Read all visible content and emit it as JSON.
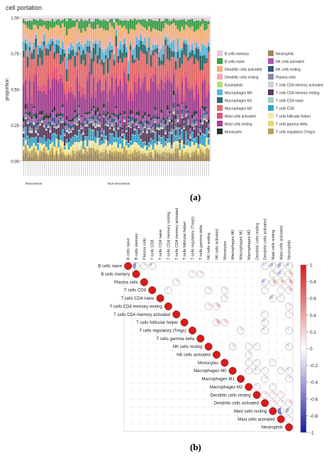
{
  "panel_labels": {
    "a": "(a)",
    "b": "(b)"
  },
  "chart_data": [
    {
      "type": "bar",
      "stacked": true,
      "title": "cell portation",
      "ylabel": "proportion",
      "xlabel": "",
      "ylim": [
        0,
        1
      ],
      "yticks": [
        "0.00",
        "0.25",
        "0.50",
        "0.75",
        "1.00"
      ],
      "group_labels": [
        "Recurrence",
        "Non-recurrence"
      ],
      "n_samples": 91,
      "grid": true,
      "legend_position": "right",
      "series": [
        {
          "name": "Neutrophils",
          "color": "#a08a5c",
          "mean": 0.035
        },
        {
          "name": "T cells regulatory (Tregs)",
          "color": "#b8a25e",
          "mean": 0.03
        },
        {
          "name": "T cells gamma delta",
          "color": "#e8d878",
          "mean": 0.02
        },
        {
          "name": "T cells follicular helper",
          "color": "#f3eaa8",
          "mean": 0.03
        },
        {
          "name": "T cells CD8",
          "color": "#3aa3c9",
          "mean": 0.05
        },
        {
          "name": "T cells CD4 naive",
          "color": "#9fd3b8",
          "mean": 0.005
        },
        {
          "name": "T cells CD4 memory resting",
          "color": "#5a3b5e",
          "mean": 0.06
        },
        {
          "name": "T cells CD4 memory activated",
          "color": "#c9d8c8",
          "mean": 0.01
        },
        {
          "name": "Plasma cells",
          "color": "#8e86a8",
          "mean": 0.02
        },
        {
          "name": "NK cells resting",
          "color": "#2f5a7a",
          "mean": 0.02
        },
        {
          "name": "NK cells activated",
          "color": "#a85ab0",
          "mean": 0.03
        },
        {
          "name": "Monocytes",
          "color": "#1f3a2a",
          "mean": 0.02
        },
        {
          "name": "Mast cells resting",
          "color": "#a23f8e",
          "mean": 0.17
        },
        {
          "name": "Mast cells activated",
          "color": "#e2507a",
          "mean": 0.04
        },
        {
          "name": "Macrophages M2",
          "color": "#e36a6a",
          "mean": 0.16
        },
        {
          "name": "Macrophages M1",
          "color": "#2c6a6a",
          "mean": 0.06
        },
        {
          "name": "Macrophages M0",
          "color": "#5bb6e0",
          "mean": 0.05
        },
        {
          "name": "Eosinophils",
          "color": "#b3df6f",
          "mean": 0.005
        },
        {
          "name": "Dendritic cells resting",
          "color": "#f7a9b4",
          "mean": 0.03
        },
        {
          "name": "Dendritic cells activated",
          "color": "#f2b27a",
          "mean": 0.08
        },
        {
          "name": "B cells naive",
          "color": "#3aa04a",
          "mean": 0.05
        },
        {
          "name": "B cells memory",
          "color": "#e8c8dc",
          "mean": 0.015
        }
      ],
      "legend": [
        [
          "B cells memory",
          "#e8c8dc"
        ],
        [
          "Neutrophils",
          "#a08a5c"
        ],
        [
          "B cells naive",
          "#3aa04a"
        ],
        [
          "NK cells activated",
          "#a85ab0"
        ],
        [
          "Dendritic cells activated",
          "#f2b27a"
        ],
        [
          "NK cells resting",
          "#2f5a7a"
        ],
        [
          "Dendritic cells resting",
          "#f7a9b4"
        ],
        [
          "Plasma cells",
          "#8e86a8"
        ],
        [
          "Eosinophils",
          "#b3df6f"
        ],
        [
          "T cells CD4 memory activated",
          "#c9d8c8"
        ],
        [
          "Macrophages M0",
          "#5bb6e0"
        ],
        [
          "T cells CD4 memory resting",
          "#5a3b5e"
        ],
        [
          "Macrophages M1",
          "#2c6a6a"
        ],
        [
          "T cells CD4 naive",
          "#9fd3b8"
        ],
        [
          "Macrophages M2",
          "#e36a6a"
        ],
        [
          "T cells CD8",
          "#3aa3c9"
        ],
        [
          "Mast cells activated",
          "#e2507a"
        ],
        [
          "T cells follicular helper",
          "#f3eaa8"
        ],
        [
          "Mast cells resting",
          "#a23f8e"
        ],
        [
          "T cells gamma delta",
          "#e8d878"
        ],
        [
          "Monocytes",
          "#1f3a2a"
        ],
        [
          "T cells regulatory (Tregs)",
          "#b8a25e"
        ]
      ]
    },
    {
      "type": "heatmap",
      "subtype": "correlation (upper triangle, pie glyphs)",
      "labels": [
        "B cells naive",
        "B cells memory",
        "Plasma cells",
        "T cells CD8",
        "T cells CD4 naive",
        "T cells CD4 memory resting",
        "T cells CD4 memory activated",
        "T cells follicular helper",
        "T cells regulatory (Tregs)",
        "T cells gamma delta",
        "NK cells resting",
        "NK cells activated",
        "Monocytes",
        "Macrophages M0",
        "Macrophages M1",
        "Macrophages M2",
        "Dendritic cells resting",
        "Dendritic cells activated",
        "Mast cells resting",
        "Mast cells activated",
        "Neutrophils"
      ],
      "colorbar_ticks": [
        "1",
        "0.8",
        "0.6",
        "0.4",
        "0.2",
        "0",
        "-0.2",
        "-0.4",
        "-0.6",
        "-0.8",
        "-1"
      ],
      "colorbar_range": [
        -1,
        1
      ],
      "colors": {
        "negative": "#1a1aa8",
        "zero": "#ffffff",
        "positive": "#d81b1b"
      },
      "cells": [
        [
          0,
          1,
          -0.45
        ],
        [
          0,
          2,
          0.2
        ],
        [
          0,
          3,
          -0.25
        ],
        [
          0,
          17,
          -0.2
        ],
        [
          0,
          18,
          -0.3
        ],
        [
          0,
          19,
          -0.35
        ],
        [
          0,
          20,
          -0.25
        ],
        [
          1,
          8,
          0.15
        ],
        [
          1,
          9,
          0.2
        ],
        [
          1,
          18,
          0.2
        ],
        [
          1,
          19,
          -0.3
        ],
        [
          1,
          20,
          0.3
        ],
        [
          2,
          6,
          0.2
        ],
        [
          2,
          17,
          -0.3
        ],
        [
          2,
          18,
          0.35
        ],
        [
          2,
          19,
          0.3
        ],
        [
          2,
          20,
          0.35
        ],
        [
          3,
          5,
          -0.15
        ],
        [
          3,
          10,
          0.2
        ],
        [
          3,
          12,
          0.2
        ],
        [
          3,
          17,
          0.15
        ],
        [
          3,
          19,
          0.15
        ],
        [
          3,
          20,
          0.3
        ],
        [
          4,
          12,
          0.2
        ],
        [
          4,
          18,
          -0.3
        ],
        [
          4,
          19,
          -0.15
        ],
        [
          5,
          10,
          0.2
        ],
        [
          5,
          11,
          0.3
        ],
        [
          5,
          20,
          0.2
        ],
        [
          6,
          17,
          -0.15
        ],
        [
          6,
          20,
          0.15
        ],
        [
          7,
          11,
          0.35
        ],
        [
          7,
          12,
          0.25
        ],
        [
          7,
          17,
          -0.2
        ],
        [
          8,
          14,
          0.2
        ],
        [
          8,
          17,
          -0.2
        ],
        [
          8,
          20,
          -0.15
        ],
        [
          10,
          13,
          0.2
        ],
        [
          10,
          15,
          0.15
        ],
        [
          10,
          16,
          -0.15
        ],
        [
          10,
          20,
          -0.2
        ],
        [
          11,
          15,
          0.2
        ],
        [
          12,
          15,
          -0.1
        ],
        [
          12,
          16,
          -0.15
        ],
        [
          12,
          18,
          0.15
        ],
        [
          13,
          15,
          -0.15
        ],
        [
          13,
          16,
          -0.2
        ],
        [
          13,
          17,
          -0.15
        ],
        [
          13,
          19,
          0.2
        ],
        [
          13,
          20,
          -0.2
        ],
        [
          14,
          17,
          0.2
        ],
        [
          14,
          20,
          0.2
        ],
        [
          15,
          16,
          -0.15
        ],
        [
          15,
          18,
          0.15
        ],
        [
          16,
          17,
          0.2
        ],
        [
          16,
          18,
          0.2
        ],
        [
          16,
          19,
          0.15
        ],
        [
          17,
          18,
          0.2
        ],
        [
          17,
          19,
          0.2
        ],
        [
          17,
          20,
          0.25
        ],
        [
          18,
          19,
          -0.55
        ],
        [
          18,
          20,
          -0.35
        ],
        [
          19,
          20,
          0.15
        ]
      ]
    }
  ]
}
